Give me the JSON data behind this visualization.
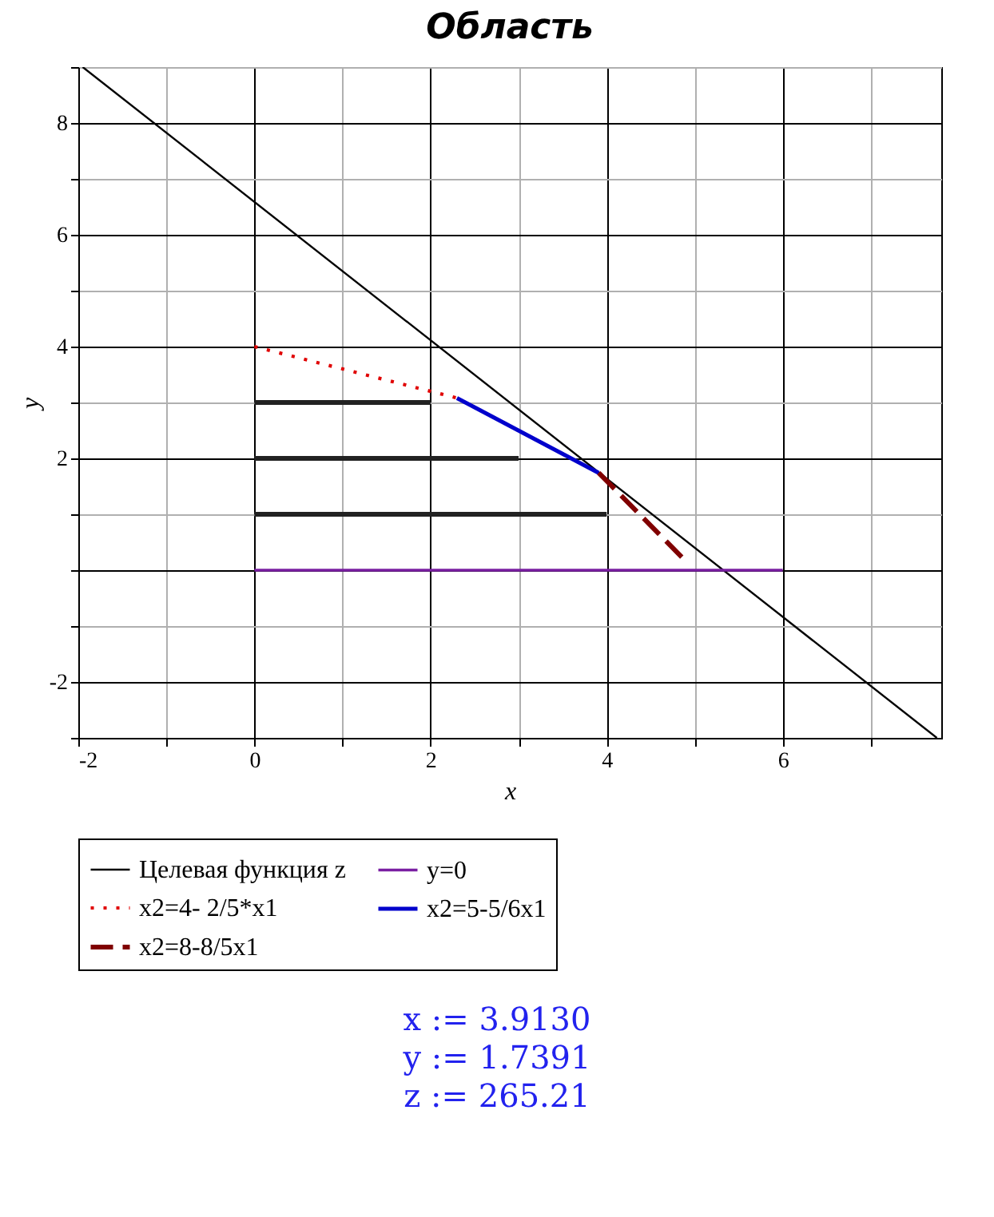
{
  "chart_data": {
    "type": "line",
    "title": "Область",
    "xlabel": "x",
    "ylabel": "y",
    "xlim": [
      -2,
      7.8
    ],
    "ylim": [
      -3,
      9
    ],
    "xticks": [
      -2,
      {
        "value": -1,
        "label": null
      },
      0,
      {
        "value": 1,
        "label": null
      },
      2,
      {
        "value": 3,
        "label": null
      },
      4,
      {
        "value": 5,
        "label": null
      },
      6,
      {
        "value": 7,
        "label": null
      }
    ],
    "yticks": [
      -2,
      {
        "value": -3,
        "label": null
      },
      {
        "value": -1,
        "label": null
      },
      {
        "value": 0,
        "label": null
      },
      {
        "value": 1,
        "label": null
      },
      2,
      {
        "value": 3,
        "label": null
      },
      4,
      {
        "value": 5,
        "label": null
      },
      6,
      {
        "value": 7,
        "label": null
      },
      8,
      {
        "value": 9,
        "label": null
      }
    ],
    "grid": true,
    "legend": "bottom",
    "series": [
      {
        "name": "Целевая функция z",
        "color": "#000000",
        "line_style": "solid",
        "x": [
          -1.95,
          7.75
        ],
        "values": [
          9.0,
          -3.0
        ]
      },
      {
        "name": "y=0",
        "color": "#7a1fa2",
        "line_style": "solid",
        "x": [
          0,
          6
        ],
        "values": [
          0,
          0
        ]
      },
      {
        "name": "x2=4- 2/5*x1",
        "color": "#e00000",
        "line_style": "dotted",
        "x": [
          0,
          2.3
        ],
        "values": [
          4,
          3.08
        ]
      },
      {
        "name": "x2=5-5/6x1",
        "color": "#0000cc",
        "line_style": "solid",
        "x": [
          2.3,
          3.91
        ],
        "values": [
          3.08,
          1.74
        ]
      },
      {
        "name": "x2=8-8/5x1",
        "color": "#800000",
        "line_style": "dashed",
        "x": [
          3.91,
          4.9
        ],
        "values": [
          1.74,
          0.16
        ]
      },
      {
        "color": "#222222",
        "line_style": "solid",
        "x": [
          0,
          2
        ],
        "values": [
          3,
          3
        ]
      },
      {
        "color": "#222222",
        "line_style": "solid",
        "x": [
          0,
          3
        ],
        "values": [
          2,
          2
        ]
      },
      {
        "color": "#222222",
        "line_style": "solid",
        "x": [
          0,
          4
        ],
        "values": [
          1,
          1
        ]
      }
    ],
    "annotations": [
      "x := 3.9130",
      "y := 1.7391",
      "z := 265.21"
    ]
  }
}
